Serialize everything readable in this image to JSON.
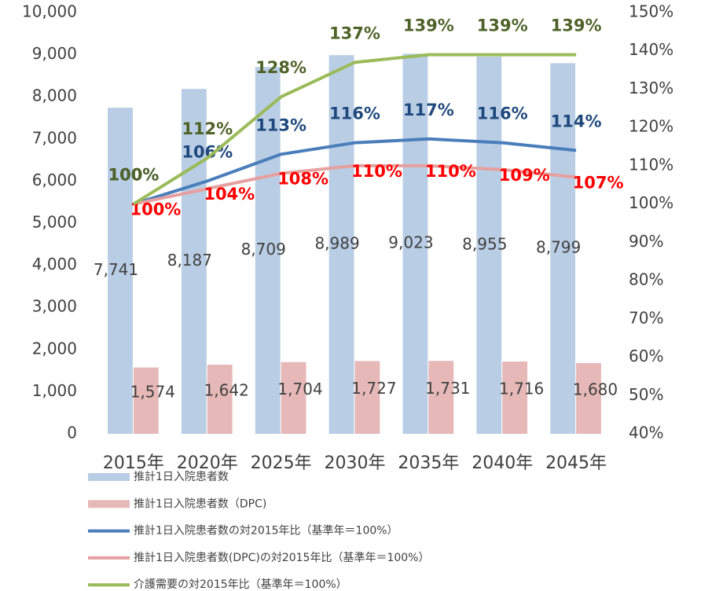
{
  "chart_data": {
    "type": "bar",
    "categories": [
      "2015年",
      "2020年",
      "2025年",
      "2030年",
      "2035年",
      "2040年",
      "2045年"
    ],
    "ylim": [
      0,
      10000
    ],
    "yticks": [
      0,
      {
        "value": 1000,
        "label": "1,000"
      },
      {
        "value": 2000,
        "label": "2,000"
      },
      {
        "value": 3000,
        "label": "3,000"
      },
      {
        "value": 4000,
        "label": "4,000"
      },
      {
        "value": 5000,
        "label": "5,000"
      },
      {
        "value": 6000,
        "label": "6,000"
      },
      {
        "value": 7000,
        "label": "7,000"
      },
      {
        "value": 8000,
        "label": "8,000"
      },
      {
        "value": 9000,
        "label": "9,000"
      },
      {
        "value": 10000,
        "label": "10,000"
      }
    ],
    "y2lim": [
      40,
      150
    ],
    "y2ticks": [
      {
        "value": 40,
        "label": "40%"
      },
      {
        "value": 50,
        "label": "50%"
      },
      {
        "value": 60,
        "label": "60%"
      },
      {
        "value": 70,
        "label": "70%"
      },
      {
        "value": 80,
        "label": "80%"
      },
      {
        "value": 90,
        "label": "90%"
      },
      {
        "value": 100,
        "label": "100%"
      },
      {
        "value": 110,
        "label": "110%"
      },
      {
        "value": 120,
        "label": "120%"
      },
      {
        "value": 130,
        "label": "130%"
      },
      {
        "value": 140,
        "label": "140%"
      },
      {
        "value": 150,
        "label": "150%"
      }
    ],
    "series": [
      {
        "name": "推計1日入院患者数",
        "type": "bar",
        "color": "#b9cde5",
        "label_color": "#404040",
        "values": [
          7741,
          8187,
          8709,
          8989,
          9023,
          8955,
          8799
        ],
        "value_labels": [
          "7,741",
          "8,187",
          "8,709",
          "8,989",
          "9,023",
          "8,955",
          "8,799"
        ]
      },
      {
        "name": "推計1日入院患者数（DPC)",
        "type": "bar",
        "color": "#e6b9b8",
        "label_color": "#404040",
        "values": [
          1574,
          1642,
          1704,
          1727,
          1731,
          1716,
          1680
        ],
        "value_labels": [
          "1,574",
          "1,642",
          "1,704",
          "1,727",
          "1,731",
          "1,716",
          "1,680"
        ]
      },
      {
        "name": "推計1日入院患者数の対2015年比（基準年＝100%）",
        "type": "line",
        "axis": "y2",
        "color": "#4a7ebb",
        "label_color": "#1f497d",
        "values": [
          100,
          106,
          113,
          116,
          117,
          116,
          114
        ],
        "value_labels": [
          "100%",
          "106%",
          "113%",
          "116%",
          "117%",
          "116%",
          "114%"
        ]
      },
      {
        "name": "推計1日入院患者数(DPC)の対2015年比（基準年＝100%）",
        "type": "line",
        "axis": "y2",
        "color": "#e6a0a0",
        "label_color": "#ff0000",
        "values": [
          100,
          104,
          108,
          110,
          110,
          109,
          107
        ],
        "value_labels": [
          "100%",
          "104%",
          "108%",
          "110%",
          "110%",
          "109%",
          "107%"
        ]
      },
      {
        "name": "介護需要の対2015年比（基準年＝100%）",
        "type": "line",
        "axis": "y2",
        "color": "#9bbb59",
        "label_color": "#4f6228",
        "values": [
          100,
          112,
          128,
          137,
          139,
          139,
          139
        ],
        "value_labels": [
          "100%",
          "112%",
          "128%",
          "137%",
          "139%",
          "139%",
          "139%"
        ]
      }
    ]
  }
}
